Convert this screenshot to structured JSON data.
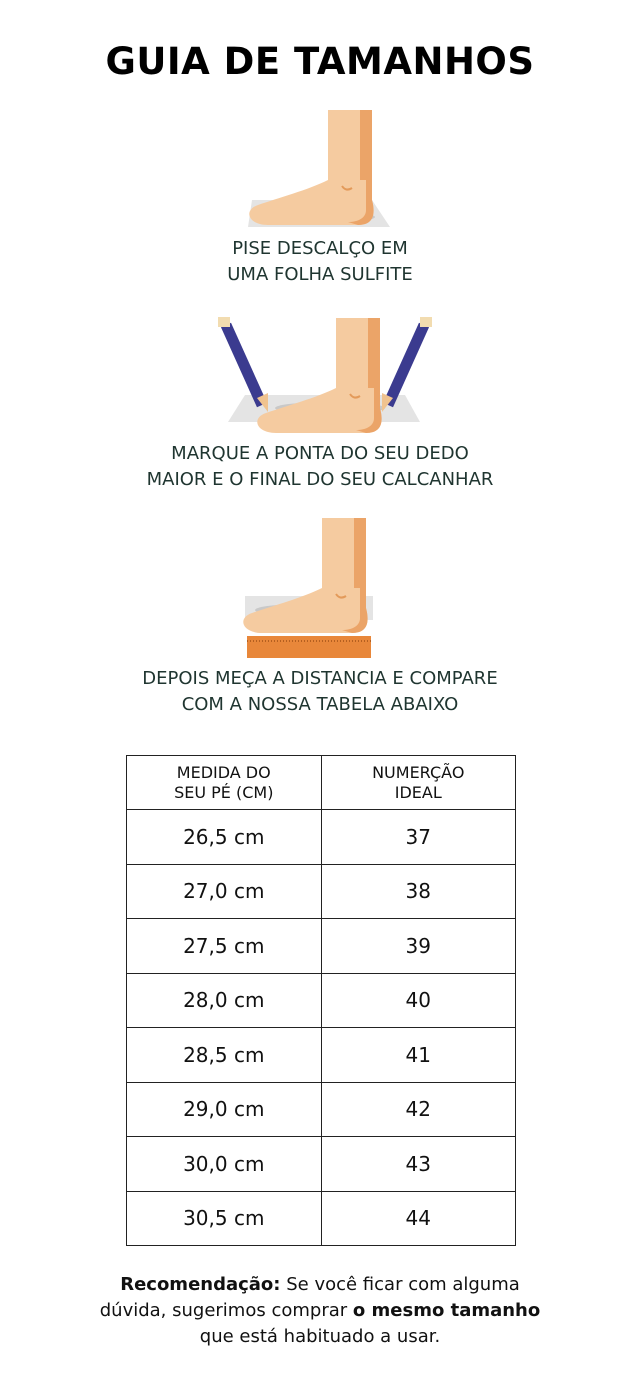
{
  "title": "GUIA DE TAMANHOS",
  "steps": [
    {
      "line1": "PISE DESCALÇO EM",
      "line2": "UMA FOLHA SULFITE"
    },
    {
      "line1": "MARQUE A PONTA DO SEU DEDO",
      "line2": "MAIOR E O FINAL DO SEU CALCANHAR"
    },
    {
      "line1": "DEPOIS MEÇA A DISTANCIA E COMPARE",
      "line2": "COM A NOSSA TABELA ABAIXO"
    }
  ],
  "table": {
    "headers": [
      {
        "l1": "MEDIDA DO",
        "l2": "SEU PÉ (CM)"
      },
      {
        "l1": "NUMERÇÃO",
        "l2": "IDEAL"
      }
    ],
    "rows": [
      [
        "26,5 cm",
        "37"
      ],
      [
        "27,0 cm",
        "38"
      ],
      [
        "27,5 cm",
        "39"
      ],
      [
        "28,0 cm",
        "40"
      ],
      [
        "28,5 cm",
        "41"
      ],
      [
        "29,0 cm",
        "42"
      ],
      [
        "30,0 cm",
        "43"
      ],
      [
        "30,5 cm",
        "44"
      ]
    ]
  },
  "recommendation": {
    "label": "Recomendação:",
    "text1": " Se você ficar com alguma dúvida, sugerimos comprar ",
    "bold": "o mesmo tamanho",
    "text2": " que está habituado a usar."
  },
  "colors": {
    "skin": "#f5cba0",
    "skin_shade": "#eba468",
    "paper": "#e4e4e4",
    "pencil": "#3b3b8f",
    "ruler": "#e8873a",
    "text": "#1f3530"
  }
}
